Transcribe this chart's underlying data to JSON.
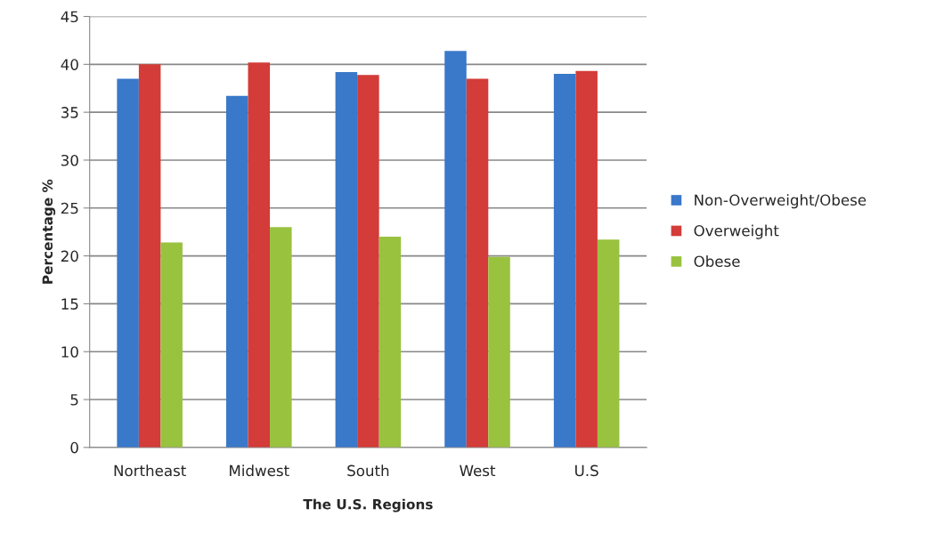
{
  "chart_data": {
    "type": "bar",
    "xlabel": "The U.S. Regions",
    "ylabel": "Percentage %",
    "categories": [
      "Northeast",
      "Midwest",
      "South",
      "West",
      "U.S"
    ],
    "series": [
      {
        "name": "Non-Overweight/Obese",
        "color": "#3a78c9",
        "values": [
          38.5,
          36.7,
          39.2,
          41.4,
          39.0
        ]
      },
      {
        "name": "Overweight",
        "color": "#d33c38",
        "values": [
          40.0,
          40.2,
          38.9,
          38.5,
          39.3
        ]
      },
      {
        "name": "Obese",
        "color": "#99c23f",
        "values": [
          21.4,
          23.0,
          22.0,
          19.9,
          21.7
        ]
      }
    ],
    "ylim": [
      0,
      45
    ],
    "yticks": [
      0,
      5,
      10,
      15,
      20,
      25,
      30,
      35,
      40,
      45
    ],
    "grid": "y",
    "legend": "right"
  }
}
